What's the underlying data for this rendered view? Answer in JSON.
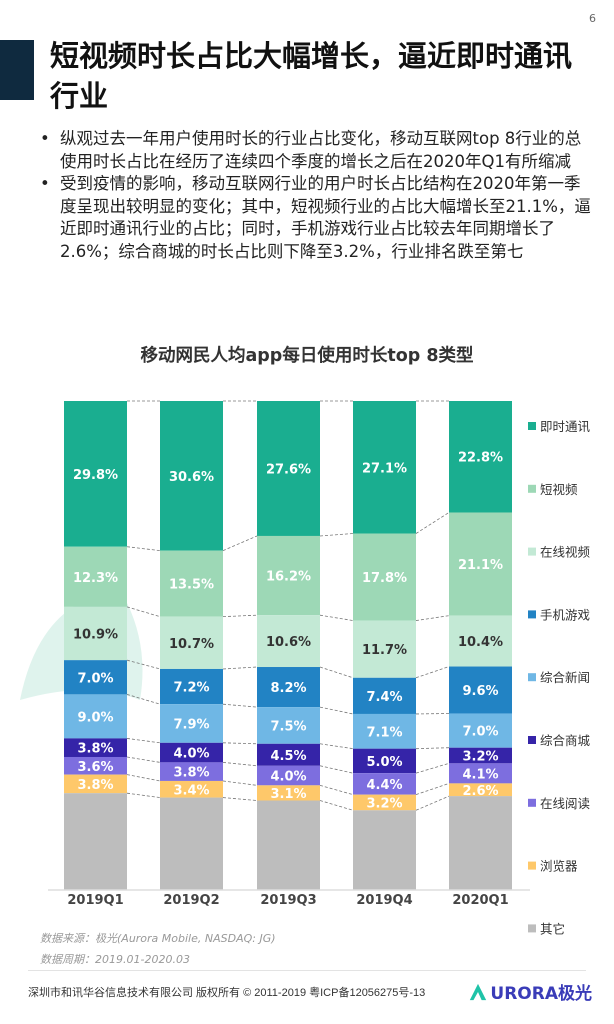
{
  "page_number": "6",
  "title": "短视频时长占比大幅增长，逼近即时通讯行业",
  "bullets": [
    "纵观过去一年用户使用时长的行业占比变化，移动互联网top 8行业的总使用时长占比在经历了连续四个季度的增长之后在2020年Q1有所缩减",
    "受到疫情的影响，移动互联网行业的用户时长占比结构在2020年第一季度呈现出较明显的变化；其中，短视频行业的占比大幅增长至21.1%，逼近即时通讯行业的占比；同时，手机游戏行业占比较去年同期增长了2.6%；综合商城的时长占比则下降至3.2%，行业排名跌至第七"
  ],
  "chart_data": {
    "type": "bar",
    "stacked": true,
    "title": "移动网民人均app每日使用时长top 8类型",
    "categories": [
      "2019Q1",
      "2019Q2",
      "2019Q3",
      "2019Q4",
      "2020Q1"
    ],
    "ylim": [
      0,
      100
    ],
    "grid": false,
    "legend": "right",
    "series": [
      {
        "name": "即时通讯",
        "color": "#1aae90",
        "values": [
          29.8,
          30.6,
          27.6,
          27.1,
          22.8
        ],
        "labels": [
          "29.8%",
          "30.6%",
          "27.6%",
          "27.1%",
          "22.8%"
        ]
      },
      {
        "name": "短视频",
        "color": "#9dd8b6",
        "values": [
          12.3,
          13.5,
          16.2,
          17.8,
          21.1
        ],
        "labels": [
          "12.3%",
          "13.5%",
          "16.2%",
          "17.8%",
          "21.1%"
        ]
      },
      {
        "name": "在线视频",
        "color": "#c3e9d5",
        "values": [
          10.9,
          10.7,
          10.6,
          11.7,
          10.4
        ],
        "labels": [
          "10.9%",
          "10.7%",
          "10.6%",
          "11.7%",
          "10.4%"
        ]
      },
      {
        "name": "手机游戏",
        "color": "#2283c4",
        "values": [
          7.0,
          7.2,
          8.2,
          7.4,
          9.6
        ],
        "labels": [
          "7.0%",
          "7.2%",
          "8.2%",
          "7.4%",
          "9.6%"
        ]
      },
      {
        "name": "综合新闻",
        "color": "#6fb7e5",
        "values": [
          9.0,
          7.9,
          7.5,
          7.1,
          7.0
        ],
        "labels": [
          "9.0%",
          "7.9%",
          "7.5%",
          "7.1%",
          "7.0%"
        ]
      },
      {
        "name": "综合商城",
        "color": "#3524a8",
        "values": [
          3.8,
          4.0,
          4.5,
          5.0,
          3.2
        ],
        "labels": [
          "3.8%",
          "4.0%",
          "4.5%",
          "5.0%",
          "3.2%"
        ]
      },
      {
        "name": "在线阅读",
        "color": "#7d6edf",
        "values": [
          3.6,
          3.8,
          4.0,
          4.4,
          4.1
        ],
        "labels": [
          "3.6%",
          "3.8%",
          "4.0%",
          "4.4%",
          "4.1%"
        ]
      },
      {
        "name": "浏览器",
        "color": "#fec86a",
        "values": [
          3.8,
          3.4,
          3.1,
          3.2,
          2.6
        ],
        "labels": [
          "3.8%",
          "3.4%",
          "3.1%",
          "3.2%",
          "2.6%"
        ]
      },
      {
        "name": "其它",
        "color": "#bdbdbd",
        "values": [
          19.8,
          18.9,
          18.3,
          16.3,
          19.2
        ]
      }
    ]
  },
  "watermark": "URORA极光 NASDAQ:JG",
  "source": "数据来源：极光(Aurora Mobile, NASDAQ: JG)",
  "period": "数据周期：2019.01-2020.03",
  "footer": "深圳市和讯华谷信息技术有限公司 版权所有 © 2011-2019 粤ICP备12056275号-13",
  "logo": "URORA极光"
}
